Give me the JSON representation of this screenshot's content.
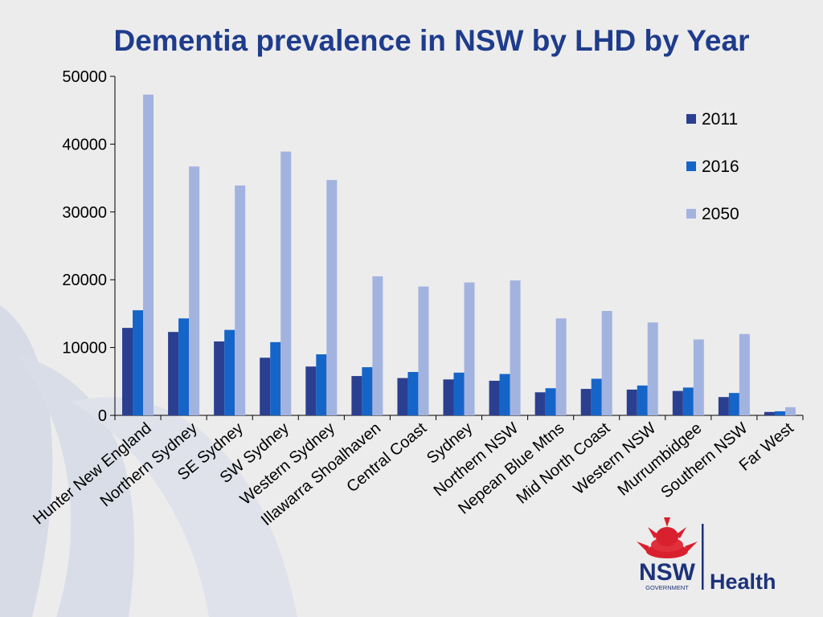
{
  "title": "Dementia prevalence in NSW by LHD by Year",
  "logo": {
    "brand": "NSW",
    "sub": "GOVERNMENT",
    "dept": "Health",
    "icon": "waratah-flower-icon"
  },
  "colors": {
    "title": "#1f3c8c",
    "2011": "#2b3f90",
    "2016": "#1565c8",
    "2050": "#a3b3e0",
    "logo_navy": "#1c3279",
    "logo_red": "#d9202e"
  },
  "chart_data": {
    "type": "bar",
    "title": "Dementia prevalence in NSW by LHD by Year",
    "xlabel": "",
    "ylabel": "",
    "ylim": [
      0,
      50000
    ],
    "yticks": [
      0,
      10000,
      20000,
      30000,
      40000,
      50000
    ],
    "grid": false,
    "legend_position": "top-right",
    "categories": [
      "Hunter New England",
      "Northern Sydney",
      "SE Sydney",
      "SW Sydney",
      "Western Sydney",
      "Illawarra Shoalhaven",
      "Central Coast",
      "Sydney",
      "Northern NSW",
      "Nepean Blue Mtns",
      "Mid North Coast",
      "Western NSW",
      "Murrumbidgee",
      "Southern NSW",
      "Far West"
    ],
    "series": [
      {
        "name": "2011",
        "values": [
          12900,
          12300,
          10900,
          8500,
          7200,
          5800,
          5500,
          5300,
          5100,
          3400,
          3900,
          3800,
          3600,
          2700,
          500
        ]
      },
      {
        "name": "2016",
        "values": [
          15500,
          14300,
          12600,
          10800,
          9000,
          7100,
          6400,
          6300,
          6100,
          4000,
          5400,
          4400,
          4100,
          3300,
          600
        ]
      },
      {
        "name": "2050",
        "values": [
          47300,
          36700,
          33900,
          38900,
          34700,
          20500,
          19000,
          19600,
          19900,
          14300,
          15400,
          13700,
          11200,
          12000,
          1200
        ]
      }
    ]
  }
}
